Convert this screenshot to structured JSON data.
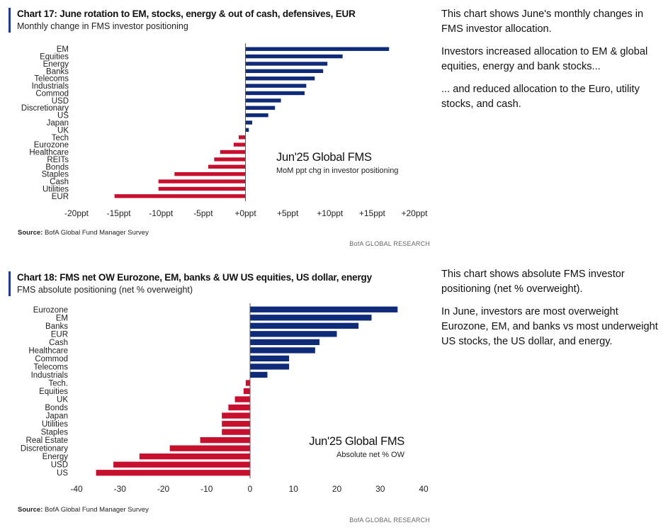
{
  "panels": [
    {
      "title": "Chart 17: June rotation to EM, stocks, energy & out of cash, defensives, EUR",
      "subtitle": "Monthly change in FMS investor positioning",
      "source_label": "Source:",
      "source_text": "BofA Global Fund Manager Survey",
      "brand": "BofA GLOBAL RESEARCH",
      "commentary": [
        "This chart shows June's monthly changes in FMS investor allocation.",
        "Investors increased allocation to EM & global equities, energy and bank stocks...",
        "... and reduced allocation to the Euro, utility stocks, and cash."
      ]
    },
    {
      "title": "Chart 18: FMS net OW Eurozone, EM, banks & UW US equities, US dollar, energy",
      "subtitle": "FMS absolute positioning (net % overweight)",
      "source_label": "Source:",
      "source_text": "BofA Global Fund Manager Survey",
      "brand": "BofA GLOBAL RESEARCH",
      "commentary": [
        "This chart shows absolute FMS investor positioning (net % overweight).",
        "In June, investors are most overweight Eurozone, EM, and banks vs most underweight US stocks, the US dollar, and energy."
      ]
    }
  ],
  "chart_data": [
    {
      "type": "bar",
      "orientation": "horizontal",
      "annotation_title": "Jun'25 Global FMS",
      "annotation_subtitle": "MoM ppt chg in investor positioning",
      "categories": [
        "EM",
        "Equities",
        "Energy",
        "Banks",
        "Telecoms",
        "Industrials",
        "Commod",
        "USD",
        "Discretionary",
        "US",
        "Japan",
        "UK",
        "Tech",
        "Eurozone",
        "Healthcare",
        "REITs",
        "Bonds",
        "Staples",
        "Cash",
        "Utilities",
        "EUR"
      ],
      "values": [
        17,
        11.5,
        9.7,
        9.2,
        8.2,
        7.2,
        7,
        4.2,
        3.5,
        2.7,
        0.8,
        0.4,
        -0.8,
        -1.4,
        -3,
        -3.7,
        -4.4,
        -8.4,
        -10.3,
        -10.3,
        -15.5
      ],
      "xlim": [
        -20,
        20
      ],
      "xticks": [
        -20,
        -15,
        -10,
        -5,
        0,
        5,
        10,
        15,
        20
      ],
      "tick_labels": [
        "-20ppt",
        "-15ppt",
        "-10ppt",
        "-5ppt",
        "+0ppt",
        "+5ppt",
        "+10ppt",
        "+15ppt",
        "+20ppt"
      ],
      "colors": {
        "positive": "#0e2a78",
        "negative": "#c8102e"
      },
      "grid": false
    },
    {
      "type": "bar",
      "orientation": "horizontal",
      "annotation_title": "Jun'25 Global FMS",
      "annotation_subtitle": "Absolute net % OW",
      "categories": [
        "Eurozone",
        "EM",
        "Banks",
        "EUR",
        "Cash",
        "Healthcare",
        "Commod",
        "Telecoms",
        "Industrials",
        "Tech.",
        "Equities",
        "UK",
        "Bonds",
        "Japan",
        "Utilities",
        "Staples",
        "Real Estate",
        "Discretionary",
        "Energy",
        "USD",
        "US"
      ],
      "values": [
        34,
        28,
        25,
        20,
        16,
        15,
        9,
        9,
        4,
        -1,
        -1.5,
        -3.5,
        -5,
        -6.5,
        -6.5,
        -6.5,
        -11.5,
        -18.5,
        -25.5,
        -31.5,
        -35.5
      ],
      "xlim": [
        -40,
        40
      ],
      "xticks": [
        -40,
        -30,
        -20,
        -10,
        0,
        10,
        20,
        30,
        40
      ],
      "tick_labels": [
        "-40",
        "-30",
        "-20",
        "-10",
        "0",
        "10",
        "20",
        "30",
        "40"
      ],
      "colors": {
        "positive": "#0e2a78",
        "negative": "#c8102e"
      },
      "grid": false
    }
  ]
}
